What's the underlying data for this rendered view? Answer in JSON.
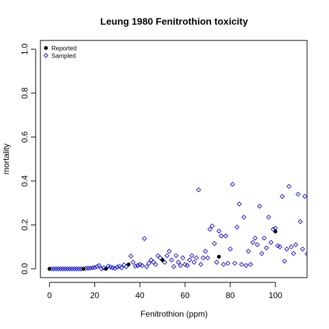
{
  "chart_data": {
    "type": "scatter",
    "title": "Leung 1980 Fenitrothion toxicity",
    "xlabel": "Fenitrothion (ppm)",
    "ylabel": "mortality",
    "xlim": [
      -4,
      114
    ],
    "ylim": [
      -0.04,
      1.04
    ],
    "x_ticks": [
      0,
      20,
      40,
      60,
      80,
      100
    ],
    "y_ticks": [
      0.0,
      0.2,
      0.4,
      0.6,
      0.8,
      1.0
    ],
    "x_tick_labels": [
      "0",
      "20",
      "40",
      "60",
      "80",
      "100"
    ],
    "y_tick_labels": [
      "0.0",
      "0.2",
      "0.4",
      "0.6",
      "0.8",
      "1.0"
    ],
    "grid": false,
    "legend_position": "top-left",
    "series": [
      {
        "name": "Reported",
        "marker": "filled-circle",
        "color": "#000000",
        "points": [
          {
            "x": 0,
            "y": 0.0
          },
          {
            "x": 15,
            "y": 0.0
          },
          {
            "x": 25,
            "y": 0.0
          },
          {
            "x": 35,
            "y": 0.02
          },
          {
            "x": 50,
            "y": 0.04
          },
          {
            "x": 75,
            "y": 0.055
          },
          {
            "x": 100,
            "y": 0.17
          }
        ]
      },
      {
        "name": "Sampled",
        "marker": "open-diamond",
        "color": "#0000cc",
        "points": [
          {
            "x": 1,
            "y": 0.0
          },
          {
            "x": 2,
            "y": 0.0
          },
          {
            "x": 3,
            "y": 0.0
          },
          {
            "x": 4,
            "y": 0.0
          },
          {
            "x": 5,
            "y": 0.0
          },
          {
            "x": 6,
            "y": 0.0
          },
          {
            "x": 7,
            "y": 0.0
          },
          {
            "x": 8,
            "y": 0.0
          },
          {
            "x": 9,
            "y": 0.0
          },
          {
            "x": 10,
            "y": 0.0
          },
          {
            "x": 11,
            "y": 0.0
          },
          {
            "x": 12,
            "y": 0.0
          },
          {
            "x": 13,
            "y": 0.0
          },
          {
            "x": 14,
            "y": 0.0
          },
          {
            "x": 16,
            "y": 0.002
          },
          {
            "x": 17,
            "y": 0.003
          },
          {
            "x": 18,
            "y": 0.003
          },
          {
            "x": 19,
            "y": 0.005
          },
          {
            "x": 20,
            "y": 0.006
          },
          {
            "x": 21,
            "y": 0.01
          },
          {
            "x": 22,
            "y": 0.015
          },
          {
            "x": 23,
            "y": 0.0
          },
          {
            "x": 24,
            "y": 0.005
          },
          {
            "x": 26,
            "y": 0.012
          },
          {
            "x": 27,
            "y": 0.008
          },
          {
            "x": 28,
            "y": 0.005
          },
          {
            "x": 29,
            "y": 0.002
          },
          {
            "x": 30,
            "y": 0.008
          },
          {
            "x": 31,
            "y": 0.012
          },
          {
            "x": 32,
            "y": 0.005
          },
          {
            "x": 33,
            "y": 0.018
          },
          {
            "x": 34,
            "y": 0.01
          },
          {
            "x": 36,
            "y": 0.058
          },
          {
            "x": 37,
            "y": 0.03
          },
          {
            "x": 38,
            "y": 0.012
          },
          {
            "x": 39,
            "y": 0.015
          },
          {
            "x": 40,
            "y": 0.02
          },
          {
            "x": 41,
            "y": 0.015
          },
          {
            "x": 42,
            "y": 0.138
          },
          {
            "x": 43,
            "y": 0.01
          },
          {
            "x": 44,
            "y": 0.025
          },
          {
            "x": 45,
            "y": 0.04
          },
          {
            "x": 46,
            "y": 0.03
          },
          {
            "x": 47,
            "y": 0.02
          },
          {
            "x": 48,
            "y": 0.06
          },
          {
            "x": 49,
            "y": 0.05
          },
          {
            "x": 51,
            "y": 0.03
          },
          {
            "x": 52,
            "y": 0.06
          },
          {
            "x": 53,
            "y": 0.08
          },
          {
            "x": 54,
            "y": 0.04
          },
          {
            "x": 55,
            "y": 0.01
          },
          {
            "x": 56,
            "y": 0.06
          },
          {
            "x": 57,
            "y": 0.03
          },
          {
            "x": 58,
            "y": 0.015
          },
          {
            "x": 59,
            "y": 0.05
          },
          {
            "x": 60,
            "y": 0.02
          },
          {
            "x": 61,
            "y": 0.015
          },
          {
            "x": 62,
            "y": 0.04
          },
          {
            "x": 63,
            "y": 0.06
          },
          {
            "x": 64,
            "y": 0.03
          },
          {
            "x": 65,
            "y": 0.05
          },
          {
            "x": 66,
            "y": 0.36
          },
          {
            "x": 67,
            "y": 0.02
          },
          {
            "x": 68,
            "y": 0.05
          },
          {
            "x": 69,
            "y": 0.08
          },
          {
            "x": 70,
            "y": 0.05
          },
          {
            "x": 71,
            "y": 0.18
          },
          {
            "x": 72,
            "y": 0.195
          },
          {
            "x": 73,
            "y": 0.115
          },
          {
            "x": 74,
            "y": 0.03
          },
          {
            "x": 75,
            "y": 0.172
          },
          {
            "x": 76,
            "y": 0.15
          },
          {
            "x": 77,
            "y": 0.02
          },
          {
            "x": 78,
            "y": 0.15
          },
          {
            "x": 79,
            "y": 0.025
          },
          {
            "x": 80,
            "y": 0.09
          },
          {
            "x": 81,
            "y": 0.385
          },
          {
            "x": 82,
            "y": 0.025
          },
          {
            "x": 83,
            "y": 0.19
          },
          {
            "x": 84,
            "y": 0.295
          },
          {
            "x": 85,
            "y": 0.02
          },
          {
            "x": 86,
            "y": 0.235
          },
          {
            "x": 87,
            "y": 0.015
          },
          {
            "x": 88,
            "y": 0.08
          },
          {
            "x": 89,
            "y": 0.02
          },
          {
            "x": 90,
            "y": 0.12
          },
          {
            "x": 91,
            "y": 0.14
          },
          {
            "x": 92,
            "y": 0.11
          },
          {
            "x": 93,
            "y": 0.285
          },
          {
            "x": 94,
            "y": 0.07
          },
          {
            "x": 95,
            "y": 0.14
          },
          {
            "x": 96,
            "y": 0.095
          },
          {
            "x": 97,
            "y": 0.235
          },
          {
            "x": 98,
            "y": 0.12
          },
          {
            "x": 99,
            "y": 0.18
          },
          {
            "x": 100,
            "y": 0.185
          },
          {
            "x": 101,
            "y": 0.105
          },
          {
            "x": 102,
            "y": 0.1
          },
          {
            "x": 103,
            "y": 0.33
          },
          {
            "x": 104,
            "y": 0.035
          },
          {
            "x": 105,
            "y": 0.09
          },
          {
            "x": 106,
            "y": 0.375
          },
          {
            "x": 107,
            "y": 0.1
          },
          {
            "x": 108,
            "y": 0.07
          },
          {
            "x": 109,
            "y": 0.11
          },
          {
            "x": 110,
            "y": 0.34
          },
          {
            "x": 111,
            "y": 0.215
          },
          {
            "x": 112,
            "y": 0.09
          },
          {
            "x": 113,
            "y": 0.33
          },
          {
            "x": 114,
            "y": 0.068
          }
        ]
      }
    ]
  }
}
